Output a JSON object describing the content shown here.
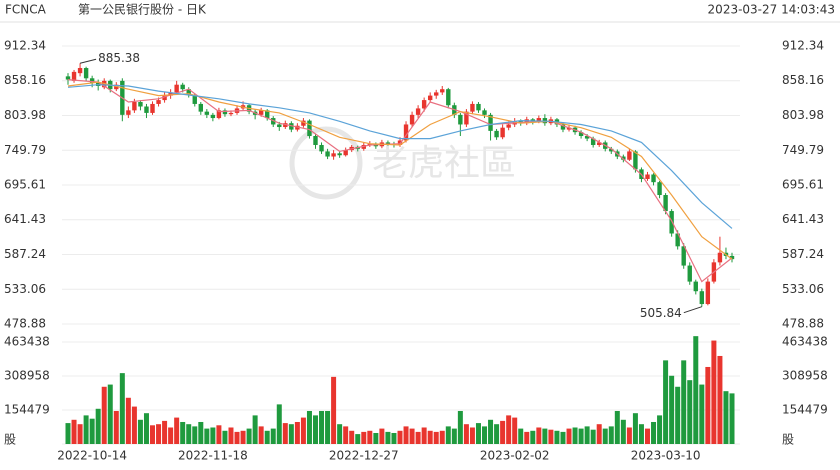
{
  "chart_data": {
    "type": "candlestick",
    "symbol": "FCNCA",
    "title": "第一公民银行股份 - 日K",
    "timestamp": "2023-03-27 14:03:43",
    "watermark": "老虎社區",
    "up_color": "#e8352e",
    "down_color": "#1f9a3e",
    "categories": [
      null,
      null,
      null,
      null,
      "2022-10-14",
      null,
      null,
      null,
      null,
      null,
      null,
      null,
      null,
      null,
      null,
      null,
      null,
      null,
      null,
      null,
      null,
      null,
      null,
      null,
      "2022-11-18",
      null,
      null,
      null,
      null,
      null,
      null,
      null,
      null,
      null,
      null,
      null,
      null,
      null,
      null,
      null,
      null,
      null,
      null,
      null,
      null,
      null,
      null,
      null,
      null,
      "2022-12-27",
      null,
      null,
      null,
      null,
      null,
      null,
      null,
      null,
      null,
      null,
      null,
      null,
      null,
      null,
      null,
      null,
      null,
      null,
      null,
      null,
      null,
      null,
      null,
      null,
      "2023-02-02",
      null,
      null,
      null,
      null,
      null,
      null,
      null,
      null,
      null,
      null,
      null,
      null,
      null,
      null,
      null,
      null,
      null,
      null,
      null,
      null,
      null,
      null,
      null,
      null,
      "2023-03-10",
      null,
      null,
      null,
      null,
      null,
      null,
      null,
      null,
      null,
      null,
      null
    ],
    "ohlc": [
      [
        865,
        870,
        852,
        860
      ],
      [
        858,
        875,
        855,
        872
      ],
      [
        870,
        885.38,
        865,
        878
      ],
      [
        878,
        880,
        858,
        862
      ],
      [
        862,
        866,
        848,
        855
      ],
      [
        855,
        860,
        843,
        850
      ],
      [
        848,
        862,
        845,
        858
      ],
      [
        858,
        860,
        840,
        845
      ],
      [
        845,
        856,
        842,
        852
      ],
      [
        858,
        862,
        795,
        805
      ],
      [
        805,
        818,
        800,
        812
      ],
      [
        812,
        830,
        808,
        825
      ],
      [
        825,
        828,
        812,
        818
      ],
      [
        818,
        822,
        800,
        808
      ],
      [
        808,
        826,
        805,
        822
      ],
      [
        822,
        832,
        818,
        828
      ],
      [
        828,
        840,
        824,
        835
      ],
      [
        835,
        845,
        830,
        840
      ],
      [
        840,
        858,
        836,
        852
      ],
      [
        852,
        855,
        840,
        845
      ],
      [
        845,
        848,
        832,
        836
      ],
      [
        836,
        838,
        818,
        822
      ],
      [
        822,
        825,
        805,
        810
      ],
      [
        810,
        814,
        800,
        805
      ],
      [
        805,
        808,
        795,
        800
      ],
      [
        800,
        816,
        798,
        812
      ],
      [
        812,
        815,
        802,
        806
      ],
      [
        806,
        812,
        803,
        808
      ],
      [
        808,
        820,
        805,
        815
      ],
      [
        815,
        826,
        812,
        820
      ],
      [
        820,
        822,
        806,
        810
      ],
      [
        810,
        814,
        798,
        805
      ],
      [
        805,
        816,
        802,
        812
      ],
      [
        812,
        814,
        796,
        800
      ],
      [
        800,
        803,
        786,
        790
      ],
      [
        790,
        794,
        780,
        786
      ],
      [
        786,
        796,
        783,
        792
      ],
      [
        792,
        795,
        778,
        782
      ],
      [
        782,
        792,
        779,
        788
      ],
      [
        788,
        800,
        785,
        796
      ],
      [
        796,
        798,
        768,
        772
      ],
      [
        772,
        776,
        752,
        758
      ],
      [
        758,
        762,
        744,
        748
      ],
      [
        748,
        752,
        736,
        740
      ],
      [
        740,
        750,
        735,
        745
      ],
      [
        745,
        748,
        738,
        742
      ],
      [
        742,
        754,
        740,
        750
      ],
      [
        750,
        758,
        747,
        755
      ],
      [
        755,
        757,
        748,
        752
      ],
      [
        752,
        762,
        749,
        758
      ],
      [
        758,
        764,
        755,
        760
      ],
      [
        760,
        762,
        752,
        756
      ],
      [
        756,
        766,
        753,
        762
      ],
      [
        762,
        765,
        757,
        760
      ],
      [
        760,
        763,
        754,
        758
      ],
      [
        758,
        770,
        755,
        765
      ],
      [
        765,
        795,
        762,
        790
      ],
      [
        790,
        810,
        786,
        805
      ],
      [
        805,
        820,
        800,
        815
      ],
      [
        815,
        832,
        810,
        828
      ],
      [
        828,
        840,
        824,
        835
      ],
      [
        835,
        844,
        830,
        840
      ],
      [
        840,
        850,
        836,
        845
      ],
      [
        845,
        847,
        815,
        820
      ],
      [
        820,
        824,
        800,
        805
      ],
      [
        805,
        808,
        772,
        790
      ],
      [
        790,
        814,
        786,
        810
      ],
      [
        810,
        826,
        806,
        822
      ],
      [
        822,
        825,
        808,
        812
      ],
      [
        812,
        815,
        800,
        805
      ],
      [
        805,
        808,
        765,
        780
      ],
      [
        780,
        783,
        766,
        770
      ],
      [
        770,
        790,
        767,
        785
      ],
      [
        785,
        795,
        781,
        790
      ],
      [
        790,
        800,
        786,
        795
      ],
      [
        795,
        798,
        788,
        792
      ],
      [
        792,
        802,
        789,
        798
      ],
      [
        798,
        800,
        790,
        795
      ],
      [
        795,
        804,
        792,
        800
      ],
      [
        800,
        806,
        788,
        792
      ],
      [
        792,
        802,
        789,
        798
      ],
      [
        798,
        800,
        786,
        790
      ],
      [
        790,
        793,
        778,
        782
      ],
      [
        782,
        790,
        779,
        785
      ],
      [
        785,
        788,
        774,
        778
      ],
      [
        778,
        781,
        768,
        772
      ],
      [
        772,
        775,
        764,
        768
      ],
      [
        768,
        771,
        754,
        758
      ],
      [
        758,
        766,
        755,
        762
      ],
      [
        762,
        765,
        748,
        752
      ],
      [
        752,
        755,
        744,
        748
      ],
      [
        748,
        751,
        736,
        740
      ],
      [
        740,
        743,
        731,
        735
      ],
      [
        735,
        752,
        733,
        748
      ],
      [
        748,
        750,
        715,
        720
      ],
      [
        720,
        723,
        700,
        705
      ],
      [
        705,
        716,
        702,
        712
      ],
      [
        712,
        714,
        695,
        700
      ],
      [
        700,
        702,
        675,
        680
      ],
      [
        680,
        683,
        650,
        655
      ],
      [
        655,
        658,
        615,
        620
      ],
      [
        620,
        625,
        595,
        600
      ],
      [
        600,
        605,
        565,
        570
      ],
      [
        570,
        575,
        540,
        545
      ],
      [
        545,
        548,
        525,
        530
      ],
      [
        530,
        534,
        505.84,
        510
      ],
      [
        510,
        550,
        508,
        545
      ],
      [
        545,
        580,
        542,
        575
      ],
      [
        575,
        615,
        570,
        590
      ],
      [
        590,
        598,
        580,
        585
      ],
      [
        585,
        590,
        575,
        580
      ]
    ],
    "volume": [
      95000,
      110000,
      90000,
      130000,
      115000,
      160000,
      260000,
      270000,
      150000,
      322000,
      210000,
      170000,
      110000,
      140000,
      85000,
      90000,
      105000,
      75000,
      120000,
      100000,
      90000,
      80000,
      100000,
      70000,
      75000,
      85000,
      60000,
      75000,
      55000,
      60000,
      70000,
      130000,
      80000,
      60000,
      70000,
      180000,
      95000,
      90000,
      100000,
      120000,
      150000,
      130000,
      150000,
      150000,
      305000,
      90000,
      80000,
      60000,
      45000,
      55000,
      60000,
      50000,
      70000,
      55000,
      50000,
      60000,
      80000,
      70000,
      55000,
      75000,
      60000,
      55000,
      60000,
      80000,
      70000,
      150000,
      90000,
      75000,
      95000,
      80000,
      110000,
      90000,
      105000,
      130000,
      120000,
      70000,
      55000,
      60000,
      75000,
      70000,
      65000,
      60000,
      55000,
      70000,
      75000,
      70000,
      80000,
      65000,
      90000,
      70000,
      80000,
      150000,
      110000,
      75000,
      140000,
      90000,
      70000,
      100000,
      130000,
      380000,
      310000,
      260000,
      380000,
      290000,
      490000,
      270000,
      350000,
      470000,
      400000,
      240000,
      230000
    ],
    "high_mark": {
      "index": 2,
      "value": 885.38
    },
    "low_mark": {
      "index": 105,
      "value": 505.84
    },
    "ma_x": [
      0,
      5,
      10,
      15,
      20,
      25,
      30,
      35,
      40,
      45,
      50,
      55,
      60,
      65,
      70,
      75,
      80,
      85,
      90,
      95,
      100,
      105,
      110
    ],
    "ma_series": [
      {
        "color": "#e87080",
        "values": [
          860,
          856,
          825,
          830,
          845,
          810,
          812,
          792,
          782,
          748,
          758,
          760,
          825,
          810,
          790,
          793,
          795,
          778,
          752,
          712,
          640,
          545,
          582
        ]
      },
      {
        "color": "#f0a040",
        "values": [
          850,
          856,
          845,
          835,
          838,
          825,
          815,
          808,
          790,
          770,
          760,
          758,
          790,
          810,
          802,
          792,
          795,
          785,
          770,
          740,
          680,
          615,
          580
        ]
      },
      {
        "color": "#5ba3d8",
        "values": [
          848,
          852,
          850,
          842,
          836,
          830,
          822,
          816,
          808,
          795,
          780,
          768,
          768,
          780,
          790,
          796,
          795,
          790,
          780,
          762,
          718,
          668,
          628
        ]
      }
    ],
    "ylim": [
      478.88,
      912.34
    ],
    "yticks": [
      912.34,
      858.16,
      803.98,
      749.79,
      695.61,
      641.43,
      587.24,
      533.06,
      478.88
    ],
    "y2lim": [
      0,
      463438
    ],
    "y2ticks": [
      {
        "value": 0,
        "label": "股"
      },
      154479,
      308958,
      463438
    ]
  }
}
